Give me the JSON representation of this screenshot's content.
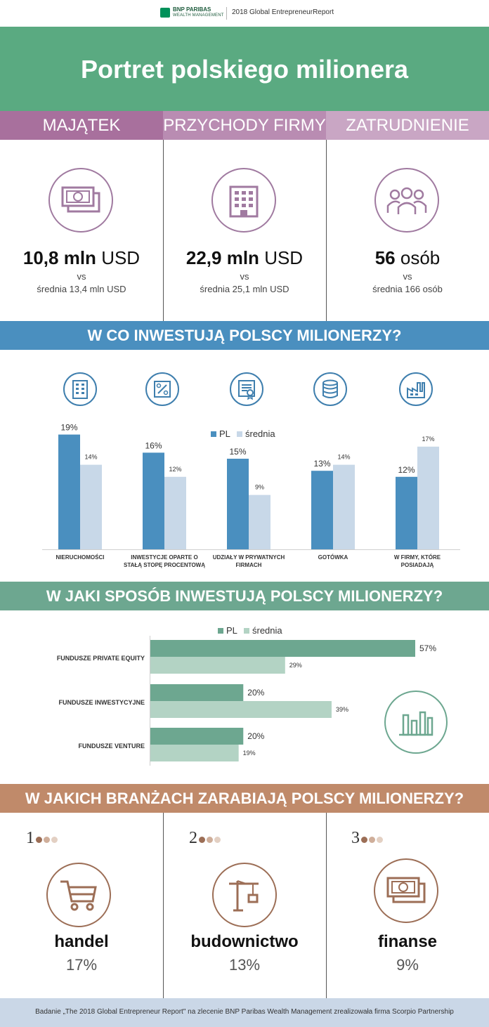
{
  "header": {
    "brand_name": "BNP PARIBAS",
    "brand_sub": "WEALTH MANAGEMENT",
    "report_title": "2018 Global EntrepreneurReport"
  },
  "title": "Portret polskiego milionera",
  "categories": [
    "MAJĄTEK",
    "PRZYCHODY FIRMY",
    "ZATRUDNIENIE"
  ],
  "stats": [
    {
      "value": "10,8 mln",
      "unit": "USD",
      "vs": "vs",
      "avg": "średnia 13,4  mln USD"
    },
    {
      "value": "22,9 mln",
      "unit": "USD",
      "vs": "vs",
      "avg": "średnia 25,1  mln USD"
    },
    {
      "value": "56",
      "unit": "osób",
      "vs": "vs",
      "avg": "średnia 166 osób"
    }
  ],
  "invest_title": "W CO INWESTUJĄ POLSCY MILIONERZY?",
  "invest_legend": {
    "pl": "PL",
    "avg": "średnia"
  },
  "chart_data": [
    {
      "type": "bar",
      "categories": [
        "NIERUCHOMOŚCI",
        "INWESTYCJE OPARTE O STAŁĄ STOPĘ PROCENTOWĄ",
        "UDZIAŁY W PRYWATNYCH FIRMACH",
        "GOTÓWKA",
        "W FIRMY, KTÓRE POSIADAJĄ"
      ],
      "series": [
        {
          "name": "PL",
          "values": [
            19,
            16,
            15,
            13,
            12
          ],
          "labels": [
            "19%",
            "16%",
            "15%",
            "13%",
            "12%"
          ],
          "color": "#4a8fbf"
        },
        {
          "name": "średnia",
          "values": [
            14,
            12,
            9,
            14,
            17
          ],
          "labels": [
            "14%",
            "12%",
            "9%",
            "14%",
            "17%"
          ],
          "color": "#c8d8e8"
        }
      ],
      "ylim": [
        0,
        20
      ]
    },
    {
      "type": "bar",
      "orientation": "horizontal",
      "categories": [
        "FUNDUSZE PRIVATE EQUITY",
        "FUNDUSZE INWESTYCYJNE",
        "FUNDUSZE VENTURE"
      ],
      "series": [
        {
          "name": "PL",
          "values": [
            57,
            20,
            20
          ],
          "labels": [
            "57%",
            "20%",
            "20%"
          ],
          "color": "#6da790"
        },
        {
          "name": "średnia",
          "values": [
            29,
            39,
            19
          ],
          "labels": [
            "29%",
            "39%",
            "19%"
          ],
          "color": "#b3d3c4"
        }
      ],
      "xlim": [
        0,
        57
      ]
    }
  ],
  "how_title": "W JAKI SPOSÓB INWESTUJĄ POLSCY MILIONERZY?",
  "how_legend": {
    "pl": "PL",
    "avg": "średnia"
  },
  "ind_title": "W JAKICH BRANŻACH ZARABIAJĄ POLSCY MILIONERZY?",
  "industries": [
    {
      "rank": "1",
      "name": "handel",
      "pct": "17%"
    },
    {
      "rank": "2",
      "name": "budownictwo",
      "pct": "13%"
    },
    {
      "rank": "3",
      "name": "finanse",
      "pct": "9%"
    }
  ],
  "footer": "Badanie „The 2018 Global Entrepreneur Report\" na zlecenie BNP Paribas Wealth Management zrealizowała firma Scorpio Partnership",
  "colors": {
    "green": "#5aaa81",
    "purple": "#a8709d",
    "blue": "#4a8fbf",
    "teal": "#6da790",
    "brown": "#c08a6a"
  }
}
